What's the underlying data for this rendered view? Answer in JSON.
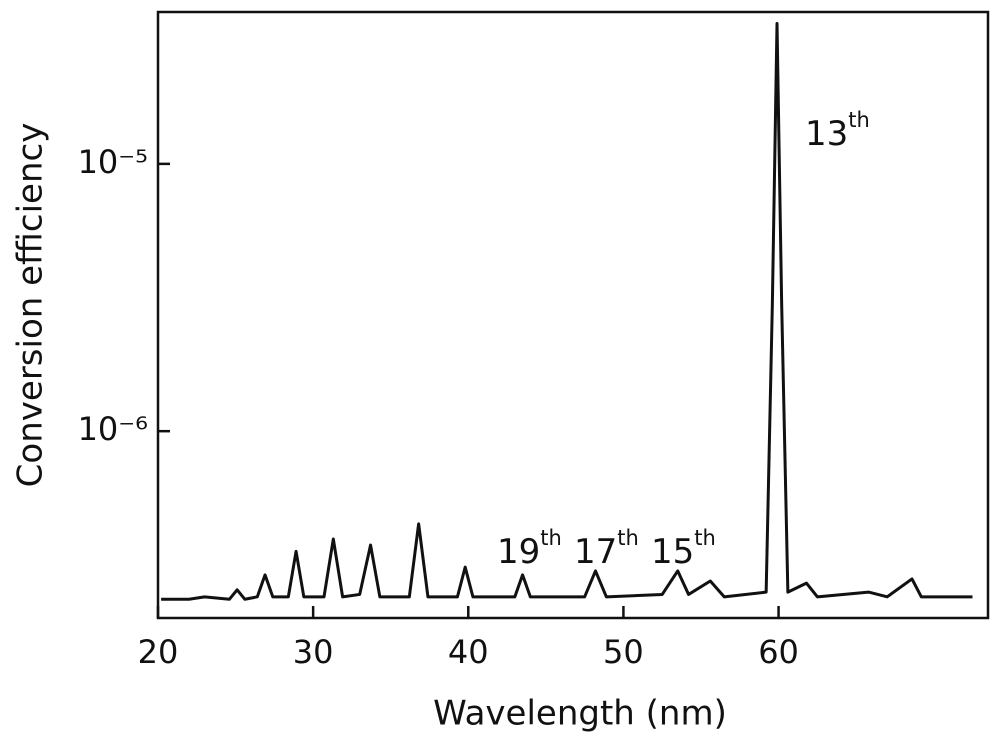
{
  "chart_data": {
    "type": "line",
    "x_label": "Wavelength (nm)",
    "y_label": "Conversion efficiency",
    "y_scale": "log",
    "xlim": [
      20,
      73.5
    ],
    "ylim": [
      2e-07,
      3.7e-05
    ],
    "xticks": [
      20,
      30,
      40,
      50,
      60
    ],
    "yticks": [
      {
        "value": 1e-05,
        "label": "10⁻⁵"
      },
      {
        "value": 1e-06,
        "label": "10⁻⁶"
      }
    ],
    "annotations": [
      {
        "text": "13",
        "sup": "th"
      },
      {
        "text": "19",
        "sup": "th"
      },
      {
        "text": "17",
        "sup": "th"
      },
      {
        "text": "15",
        "sup": "th"
      }
    ],
    "series": [
      {
        "color": "#111111",
        "x": [
          20.2,
          22,
          23,
          24.6,
          25.1,
          25.6,
          26.4,
          26.9,
          27.4,
          28.4,
          28.9,
          29.4,
          30.7,
          31.3,
          31.9,
          33.0,
          33.7,
          34.3,
          36.2,
          36.8,
          37.4,
          39.3,
          39.8,
          40.3,
          43.0,
          43.5,
          44.0,
          47.5,
          48.2,
          48.9,
          52.5,
          53.5,
          54.2,
          55.6,
          56.5,
          59.2,
          59.6,
          59.9,
          60.2,
          60.6,
          61.8,
          62.5,
          65.8,
          67,
          68.6,
          69.2,
          72.5
        ],
        "values": [
          2.35e-07,
          2.35e-07,
          2.4e-07,
          2.35e-07,
          2.55e-07,
          2.35e-07,
          2.4e-07,
          2.9e-07,
          2.4e-07,
          2.4e-07,
          3.55e-07,
          2.4e-07,
          2.4e-07,
          3.95e-07,
          2.4e-07,
          2.45e-07,
          3.75e-07,
          2.4e-07,
          2.4e-07,
          4.5e-07,
          2.4e-07,
          2.4e-07,
          3.1e-07,
          2.4e-07,
          2.4e-07,
          2.9e-07,
          2.4e-07,
          2.4e-07,
          3e-07,
          2.4e-07,
          2.45e-07,
          3e-07,
          2.45e-07,
          2.75e-07,
          2.4e-07,
          2.5e-07,
          3e-06,
          3.35e-05,
          3e-06,
          2.5e-07,
          2.7e-07,
          2.4e-07,
          2.5e-07,
          2.4e-07,
          2.8e-07,
          2.4e-07,
          2.4e-07
        ]
      }
    ]
  }
}
